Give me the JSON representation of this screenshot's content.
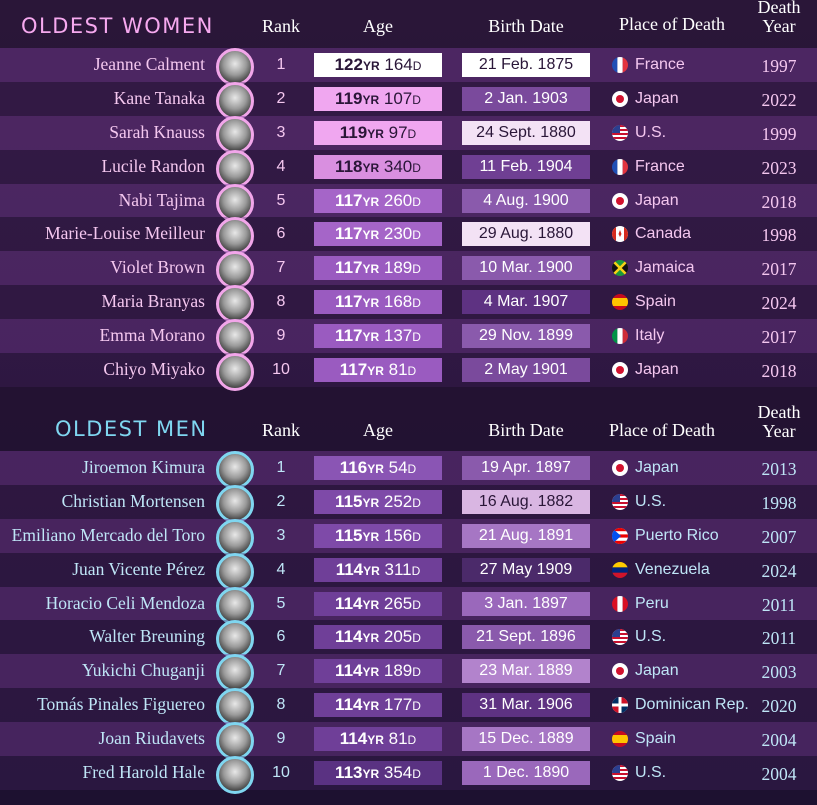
{
  "women": {
    "title": "OLDEST WOMEN",
    "title_color": "#f6a9ef",
    "headers": {
      "rank": "Rank",
      "age": "Age",
      "birth": "Birth Date",
      "place": "Place of Death",
      "year_l1": "Death",
      "year_l2": "Year"
    },
    "rows": [
      {
        "name": "Jeanne Calment",
        "rank": "1",
        "age_y": "122",
        "age_d": "164",
        "birth": "21 Feb. 1875",
        "flag": "fr",
        "place": "France",
        "year": "1997",
        "age_bg": "#ffffff",
        "age_fg": "#2a1638",
        "birth_bg": "#ffffff",
        "birth_fg": "#2a1638"
      },
      {
        "name": "Kane Tanaka",
        "rank": "2",
        "age_y": "119",
        "age_d": "107",
        "birth": "2 Jan. 1903",
        "flag": "jp",
        "place": "Japan",
        "year": "2022",
        "age_bg": "#f0a7f0",
        "age_fg": "#2a1638",
        "birth_bg": "#7a4a9c",
        "birth_fg": "#ffffff"
      },
      {
        "name": "Sarah Knauss",
        "rank": "3",
        "age_y": "119",
        "age_d": "97",
        "birth": "24 Sept. 1880",
        "flag": "us",
        "place": "U.S.",
        "year": "1999",
        "age_bg": "#f0a7f0",
        "age_fg": "#2a1638",
        "birth_bg": "#f3e2f5",
        "birth_fg": "#2a1638"
      },
      {
        "name": "Lucile Randon",
        "rank": "4",
        "age_y": "118",
        "age_d": "340",
        "birth": "11 Feb. 1904",
        "flag": "fr",
        "place": "France",
        "year": "2023",
        "age_bg": "#d98fe0",
        "age_fg": "#2a1638",
        "birth_bg": "#6f3f93",
        "birth_fg": "#ffffff"
      },
      {
        "name": "Nabi Tajima",
        "rank": "5",
        "age_y": "117",
        "age_d": "260",
        "birth": "4 Aug. 1900",
        "flag": "jp",
        "place": "Japan",
        "year": "2018",
        "age_bg": "#a565c8",
        "age_fg": "#ffffff",
        "birth_bg": "#8a5aac",
        "birth_fg": "#ffffff"
      },
      {
        "name": "Marie-Louise Meilleur",
        "rank": "6",
        "age_y": "117",
        "age_d": "230",
        "birth": "29 Aug. 1880",
        "flag": "ca",
        "place": "Canada",
        "year": "1998",
        "age_bg": "#a565c8",
        "age_fg": "#ffffff",
        "birth_bg": "#f3e2f5",
        "birth_fg": "#2a1638"
      },
      {
        "name": "Violet Brown",
        "rank": "7",
        "age_y": "117",
        "age_d": "189",
        "birth": "10 Mar. 1900",
        "flag": "jm",
        "place": "Jamaica",
        "year": "2017",
        "age_bg": "#9a5bc0",
        "age_fg": "#ffffff",
        "birth_bg": "#8a5aac",
        "birth_fg": "#ffffff"
      },
      {
        "name": "Maria Branyas",
        "rank": "8",
        "age_y": "117",
        "age_d": "168",
        "birth": "4 Mar. 1907",
        "flag": "es",
        "place": "Spain",
        "year": "2024",
        "age_bg": "#9a5bc0",
        "age_fg": "#ffffff",
        "birth_bg": "#5e3282",
        "birth_fg": "#ffffff"
      },
      {
        "name": "Emma Morano",
        "rank": "9",
        "age_y": "117",
        "age_d": "137",
        "birth": "29 Nov. 1899",
        "flag": "it",
        "place": "Italy",
        "year": "2017",
        "age_bg": "#9a5bc0",
        "age_fg": "#ffffff",
        "birth_bg": "#8a5aac",
        "birth_fg": "#ffffff"
      },
      {
        "name": "Chiyo Miyako",
        "rank": "10",
        "age_y": "117",
        "age_d": "81",
        "birth": "2 May 1901",
        "flag": "jp",
        "place": "Japan",
        "year": "2018",
        "age_bg": "#9a5bc0",
        "age_fg": "#ffffff",
        "birth_bg": "#7a4a9c",
        "birth_fg": "#ffffff"
      }
    ]
  },
  "men": {
    "title": "OLDEST MEN",
    "title_color": "#7fd6f0",
    "headers": {
      "rank": "Rank",
      "age": "Age",
      "birth": "Birth Date",
      "place": "Place of Death",
      "year_l1": "Death",
      "year_l2": "Year"
    },
    "rows": [
      {
        "name": "Jiroemon Kimura",
        "rank": "1",
        "age_y": "116",
        "age_d": "54",
        "birth": "19 Apr. 1897",
        "flag": "jp",
        "place": "Japan",
        "year": "2013",
        "age_bg": "#8a55b4",
        "age_fg": "#ffffff",
        "birth_bg": "#8a5aac",
        "birth_fg": "#ffffff"
      },
      {
        "name": "Christian Mortensen",
        "rank": "2",
        "age_y": "115",
        "age_d": "252",
        "birth": "16 Aug. 1882",
        "flag": "us",
        "place": "U.S.",
        "year": "1998",
        "age_bg": "#7e4aa8",
        "age_fg": "#ffffff",
        "birth_bg": "#d9b6e2",
        "birth_fg": "#2a1638"
      },
      {
        "name": "Emiliano Mercado del Toro",
        "rank": "3",
        "age_y": "115",
        "age_d": "156",
        "birth": "21 Aug. 1891",
        "flag": "pr",
        "place": "Puerto Rico",
        "year": "2007",
        "age_bg": "#7e4aa8",
        "age_fg": "#ffffff",
        "birth_bg": "#a676c4",
        "birth_fg": "#ffffff"
      },
      {
        "name": "Juan Vicente Pérez",
        "rank": "4",
        "age_y": "114",
        "age_d": "311",
        "birth": "27 May 1909",
        "flag": "ve",
        "place": "Venezuela",
        "year": "2024",
        "age_bg": "#6f3f98",
        "age_fg": "#ffffff",
        "birth_bg": "#4b2a6a",
        "birth_fg": "#ffffff"
      },
      {
        "name": "Horacio Celi Mendoza",
        "rank": "5",
        "age_y": "114",
        "age_d": "265",
        "birth": "3 Jan. 1897",
        "flag": "pe",
        "place": "Peru",
        "year": "2011",
        "age_bg": "#6f3f98",
        "age_fg": "#ffffff",
        "birth_bg": "#9a68bb",
        "birth_fg": "#ffffff"
      },
      {
        "name": "Walter Breuning",
        "rank": "6",
        "age_y": "114",
        "age_d": "205",
        "birth": "21 Sept. 1896",
        "flag": "us",
        "place": "U.S.",
        "year": "2011",
        "age_bg": "#6f3f98",
        "age_fg": "#ffffff",
        "birth_bg": "#8a5aac",
        "birth_fg": "#ffffff"
      },
      {
        "name": "Yukichi Chuganji",
        "rank": "7",
        "age_y": "114",
        "age_d": "189",
        "birth": "23 Mar. 1889",
        "flag": "jp",
        "place": "Japan",
        "year": "2003",
        "age_bg": "#6f3f98",
        "age_fg": "#ffffff",
        "birth_bg": "#b283cc",
        "birth_fg": "#ffffff"
      },
      {
        "name": "Tomás Pinales Figuereo",
        "rank": "8",
        "age_y": "114",
        "age_d": "177",
        "birth": "31 Mar. 1906",
        "flag": "do",
        "place": "Dominican Rep.",
        "year": "2020",
        "age_bg": "#6f3f98",
        "age_fg": "#ffffff",
        "birth_bg": "#5e3282",
        "birth_fg": "#ffffff"
      },
      {
        "name": "Joan Riudavets",
        "rank": "9",
        "age_y": "114",
        "age_d": "81",
        "birth": "15 Dec. 1889",
        "flag": "es",
        "place": "Spain",
        "year": "2004",
        "age_bg": "#6f3f98",
        "age_fg": "#ffffff",
        "birth_bg": "#a676c4",
        "birth_fg": "#ffffff"
      },
      {
        "name": "Fred Harold Hale",
        "rank": "10",
        "age_y": "113",
        "age_d": "354",
        "birth": "1 Dec. 1890",
        "flag": "us",
        "place": "U.S.",
        "year": "2004",
        "age_bg": "#5a3282",
        "age_fg": "#ffffff",
        "birth_bg": "#9a68bb",
        "birth_fg": "#ffffff"
      }
    ]
  },
  "units": {
    "years": "YR",
    "days": "D"
  }
}
